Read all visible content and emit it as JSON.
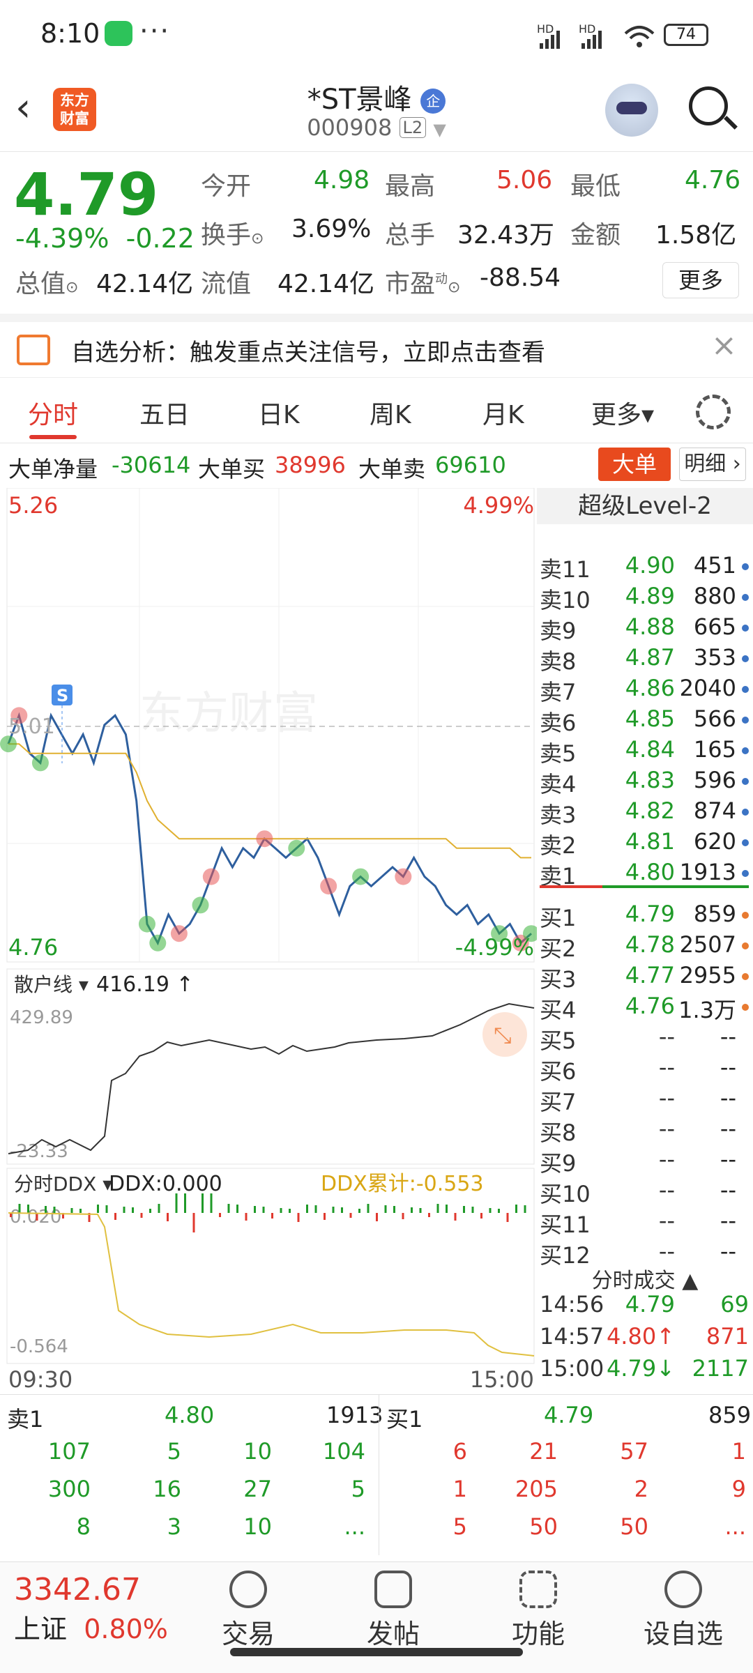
{
  "status": {
    "time": "8:10",
    "dots": "···",
    "hd1": "HD",
    "hd2": "HD",
    "battery": "74"
  },
  "header": {
    "back": "‹",
    "logo_line1": "东方",
    "logo_line2": "财富",
    "title": "*ST景峰",
    "badge": "企",
    "code": "000908",
    "l2": "L2"
  },
  "quote": {
    "price": "4.79",
    "pct": "-4.39%",
    "chg": "-0.22",
    "open_label": "今开",
    "open": "4.98",
    "high_label": "最高",
    "high": "5.06",
    "low_label": "最低",
    "low": "4.76",
    "turnover_label": "换手",
    "turnover": "3.69%",
    "vol_label": "总手",
    "vol": "32.43万",
    "amount_label": "金额",
    "amount": "1.58亿",
    "mcap_label": "总值",
    "mcap": "42.14亿",
    "float_label": "流值",
    "float": "42.14亿",
    "pe_label": "市盈",
    "pe_sup": "动",
    "pe": "-88.54",
    "more": "更多"
  },
  "notice": {
    "text": "自选分析：触发重点关注信号，立即点击查看",
    "close": "×"
  },
  "tabs": [
    {
      "label": "分时"
    },
    {
      "label": "五日"
    },
    {
      "label": "日K"
    },
    {
      "label": "周K"
    },
    {
      "label": "月K"
    },
    {
      "label": "更多▾"
    }
  ],
  "bigorder": {
    "net_label": "大单净量",
    "net": "-30614",
    "buy_label": "大单买",
    "buy": "38996",
    "sell_label": "大单卖",
    "sell": "69610",
    "btn_big": "大单",
    "btn_detail": "明细 ›"
  },
  "chart": {
    "top_price": "5.26",
    "top_pct": "4.99%",
    "ref_price": "5.01",
    "bot_price": "4.76",
    "bot_pct": "-4.99%",
    "s_marker": "S",
    "watermark": "东方财富",
    "retail_label": "散户线 ▾",
    "retail_value": "416.19 ↑",
    "retail_max": "429.89",
    "retail_min": "-23.33",
    "ddx_label": "分时DDX ▾",
    "ddx_value": "DDX:0.000",
    "ddx_cum": "DDX累计:-0.553",
    "ddx_max": "0.020",
    "ddx_min": "-0.564",
    "time_start": "09:30",
    "time_end": "15:00"
  },
  "chart_data": {
    "type": "line",
    "price_range": [
      4.76,
      5.26
    ],
    "reference": 5.01,
    "series": [
      {
        "values": [
          4.99,
          5.02,
          4.98,
          4.97,
          5.02,
          5.0,
          4.98,
          5.0,
          4.97,
          5.01,
          5.02,
          5.0,
          4.93,
          4.8,
          4.78,
          4.81,
          4.79,
          4.8,
          4.82,
          4.85,
          4.88,
          4.86,
          4.88,
          4.87,
          4.89,
          4.88,
          4.87,
          4.88,
          4.89,
          4.87,
          4.84,
          4.81,
          4.84,
          4.85,
          4.84,
          4.85,
          4.86,
          4.85,
          4.87,
          4.85,
          4.84,
          4.82,
          4.81,
          4.82,
          4.8,
          4.81,
          4.79,
          4.8,
          4.78,
          4.79
        ]
      },
      {
        "values": [
          4.99,
          4.99,
          4.98,
          4.98,
          4.98,
          4.98,
          4.98,
          4.98,
          4.98,
          4.98,
          4.98,
          4.98,
          4.96,
          4.93,
          4.91,
          4.9,
          4.89,
          4.89,
          4.89,
          4.89,
          4.89,
          4.89,
          4.89,
          4.89,
          4.89,
          4.89,
          4.89,
          4.89,
          4.89,
          4.89,
          4.89,
          4.89,
          4.89,
          4.89,
          4.89,
          4.89,
          4.89,
          4.89,
          4.89,
          4.89,
          4.89,
          4.89,
          4.88,
          4.88,
          4.88,
          4.88,
          4.88,
          4.88,
          4.87,
          4.87
        ]
      }
    ]
  },
  "book": {
    "title": "超级Level-2",
    "sell": [
      {
        "label": "卖11",
        "price": "4.90",
        "vol": "451",
        "dot": "#3b73c4"
      },
      {
        "label": "卖10",
        "price": "4.89",
        "vol": "880",
        "dot": "#3b73c4"
      },
      {
        "label": "卖9",
        "price": "4.88",
        "vol": "665",
        "dot": "#3b73c4"
      },
      {
        "label": "卖8",
        "price": "4.87",
        "vol": "353",
        "dot": "#3b73c4"
      },
      {
        "label": "卖7",
        "price": "4.86",
        "vol": "2040",
        "dot": "#3b73c4"
      },
      {
        "label": "卖6",
        "price": "4.85",
        "vol": "566",
        "dot": "#3b73c4"
      },
      {
        "label": "卖5",
        "price": "4.84",
        "vol": "165",
        "dot": "#3b73c4"
      },
      {
        "label": "卖4",
        "price": "4.83",
        "vol": "596",
        "dot": "#3b73c4"
      },
      {
        "label": "卖3",
        "price": "4.82",
        "vol": "874",
        "dot": "#3b73c4"
      },
      {
        "label": "卖2",
        "price": "4.81",
        "vol": "620",
        "dot": "#3b73c4"
      },
      {
        "label": "卖1",
        "price": "4.80",
        "vol": "1913",
        "dot": "#3b73c4"
      }
    ],
    "buy": [
      {
        "label": "买1",
        "price": "4.79",
        "vol": "859",
        "dot": "#e87a30"
      },
      {
        "label": "买2",
        "price": "4.78",
        "vol": "2507",
        "dot": "#e87a30"
      },
      {
        "label": "买3",
        "price": "4.77",
        "vol": "2955",
        "dot": "#e87a30"
      },
      {
        "label": "买4",
        "price": "4.76",
        "vol": "1.3万",
        "dot": "#e87a30"
      },
      {
        "label": "买5",
        "price": "--",
        "vol": "--"
      },
      {
        "label": "买6",
        "price": "--",
        "vol": "--"
      },
      {
        "label": "买7",
        "price": "--",
        "vol": "--"
      },
      {
        "label": "买8",
        "price": "--",
        "vol": "--"
      },
      {
        "label": "买9",
        "price": "--",
        "vol": "--"
      },
      {
        "label": "买10",
        "price": "--",
        "vol": "--"
      },
      {
        "label": "买11",
        "price": "--",
        "vol": "--"
      },
      {
        "label": "买12",
        "price": "--",
        "vol": "--"
      }
    ],
    "trades_title": "分时成交 ▲",
    "trades": [
      {
        "time": "14:56",
        "price": "4.79",
        "arrow": "",
        "vol": "69",
        "color": "#1f9a28"
      },
      {
        "time": "14:57",
        "price": "4.80",
        "arrow": "↑",
        "vol": "871",
        "color": "#e0382e"
      },
      {
        "time": "15:00",
        "price": "4.79",
        "arrow": "↓",
        "vol": "2117",
        "color": "#1f9a28"
      }
    ]
  },
  "level": {
    "sell_label": "卖1",
    "sell_price": "4.80",
    "sell_vol": "1913",
    "buy_label": "买1",
    "buy_price": "4.79",
    "buy_vol": "859",
    "sell_rows": [
      [
        "107",
        "5",
        "10",
        "104"
      ],
      [
        "300",
        "16",
        "27",
        "5"
      ],
      [
        "8",
        "3",
        "10",
        "..."
      ]
    ],
    "buy_rows": [
      [
        "6",
        "21",
        "57",
        "1"
      ],
      [
        "1",
        "205",
        "2",
        "9"
      ],
      [
        "5",
        "50",
        "50",
        "..."
      ]
    ]
  },
  "bottom": {
    "index_value": "3342.67",
    "index_name": "上证",
    "index_pct": "0.80%",
    "nav": [
      {
        "label": "交易",
        "icon": "yen-icon"
      },
      {
        "label": "发帖",
        "icon": "edit-icon"
      },
      {
        "label": "功能",
        "icon": "grid-icon"
      },
      {
        "label": "设自选",
        "icon": "more-icon"
      }
    ]
  }
}
